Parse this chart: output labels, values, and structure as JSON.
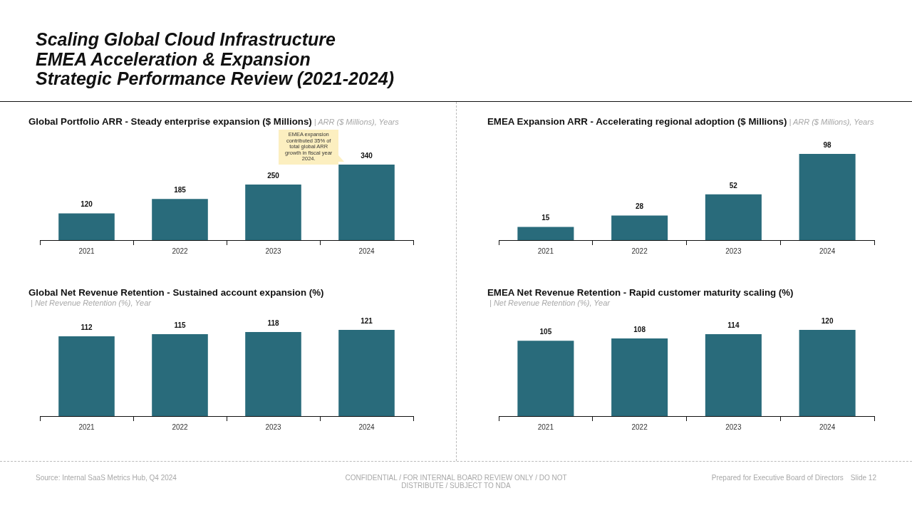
{
  "chart_data": [
    {
      "type": "other",
      "title": "Scaling Global Cloud Infrastructure\nEMEA Acceleration & Expansion\nStrategic Performance Review (2021-2024)"
    },
    {
      "type": "bar",
      "title": "Global Portfolio ARR - Steady enterprise expansion ($ Millions)",
      "subtitle": "| ARR ($ Millions), Years",
      "categories": [
        "2021",
        "2022",
        "2023",
        "2024"
      ],
      "values": [
        120,
        185,
        250,
        340
      ],
      "color": "#296b7b",
      "data_labels": true,
      "annotations": [
        "EMEA expansion contributed 35% of total global ARR growth in fiscal year 2024."
      ]
    },
    {
      "type": "bar",
      "title": "EMEA Expansion ARR - Accelerating regional adoption ($ Millions)",
      "subtitle": "| ARR ($ Millions), Years",
      "categories": [
        "2021",
        "2022",
        "2023",
        "2024"
      ],
      "values": [
        15,
        28,
        52,
        98
      ],
      "color": "#296b7b",
      "data_labels": true
    },
    {
      "type": "bar",
      "title": "Global Net Revenue Retention - Sustained account expansion (%)",
      "subtitle": "| Net Revenue Retention (%), Year",
      "categories": [
        "2021",
        "2022",
        "2023",
        "2024"
      ],
      "values": [
        112,
        115,
        118,
        121
      ],
      "color": "#296b7b",
      "data_labels": true
    },
    {
      "type": "bar",
      "title": "EMEA Net Revenue Retention - Rapid customer maturity scaling (%)",
      "subtitle": "| Net Revenue Retention (%), Year",
      "categories": [
        "2021",
        "2022",
        "2023",
        "2024"
      ],
      "values": [
        105,
        108,
        114,
        120
      ],
      "color": "#296b7b",
      "data_labels": true
    },
    {
      "type": "other",
      "annotations": [
        "Source: Internal SaaS Metrics Hub, Q4 2024",
        "CONFIDENTIAL / FOR INTERNAL BOARD REVIEW ONLY / DO NOT DISTRIBUTE / SUBJECT TO NDA",
        "Prepared for Executive Board of Directors",
        "Slide 12"
      ]
    }
  ]
}
